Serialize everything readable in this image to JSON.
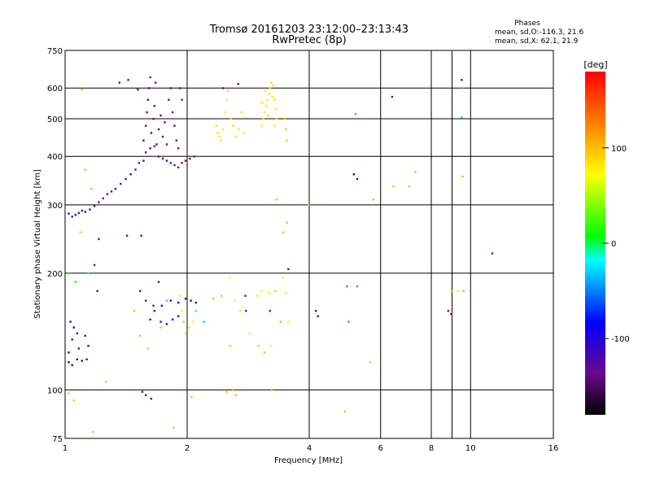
{
  "chart_data": {
    "type": "scatter",
    "title": "Tromsø 20161203 23:12:00–23:13:43",
    "subtitle": "RwPretec (8p)",
    "xlabel": "Frequency [MHz]",
    "ylabel": "Stationary phase Virtual Height [km]",
    "x_scale": "log",
    "y_scale": "log",
    "xlim": [
      1,
      16
    ],
    "ylim": [
      75,
      750
    ],
    "x_ticks": [
      1,
      2,
      4,
      6,
      8,
      10,
      16
    ],
    "y_ticks": [
      75,
      100,
      200,
      300,
      400,
      500,
      600,
      750
    ],
    "x_gridlines": [
      1,
      2,
      4,
      6,
      8,
      9,
      10,
      16
    ],
    "y_gridlines": [
      100,
      200,
      300,
      400,
      500,
      600
    ],
    "phases": {
      "title": "Phases",
      "o_line": "mean, sd,O:-116.3, 21.6",
      "x_line": "mean, sd,X:  62.1, 21.9"
    },
    "colorbar": {
      "label": "[deg]",
      "range": [
        -180,
        180
      ],
      "ticks": [
        -100,
        0,
        100
      ]
    },
    "series": [
      {
        "values": [
          [
            1.02,
            285,
            -115
          ],
          [
            1.04,
            280,
            -112
          ],
          [
            1.06,
            283,
            -110
          ],
          [
            1.08,
            286,
            -114
          ],
          [
            1.1,
            290,
            -108
          ],
          [
            1.12,
            288,
            -113
          ],
          [
            1.15,
            292,
            -118
          ],
          [
            1.18,
            298,
            -116
          ],
          [
            1.21,
            305,
            -120
          ],
          [
            1.24,
            312,
            -118
          ],
          [
            1.27,
            320,
            -122
          ],
          [
            1.3,
            325,
            -120
          ],
          [
            1.03,
            150,
            -105
          ],
          [
            1.05,
            145,
            -110
          ],
          [
            1.07,
            140,
            -108
          ],
          [
            1.04,
            135,
            -102
          ],
          [
            1.08,
            128,
            -112
          ],
          [
            1.02,
            125,
            -106
          ],
          [
            1.12,
            138,
            -110
          ],
          [
            1.14,
            130,
            -104
          ],
          [
            1.02,
            118,
            -100
          ],
          [
            1.04,
            116,
            -104
          ],
          [
            1.07,
            120,
            -98
          ],
          [
            1.1,
            119,
            -102
          ],
          [
            1.13,
            120,
            -100
          ],
          [
            1.73,
            165,
            -110
          ],
          [
            1.82,
            170,
            -112
          ],
          [
            1.9,
            168,
            -108
          ],
          [
            1.98,
            172,
            -106
          ],
          [
            2.04,
            170,
            -104
          ],
          [
            2.1,
            168,
            -110
          ],
          [
            1.72,
            150,
            -112
          ],
          [
            1.78,
            148,
            -108
          ],
          [
            1.84,
            152,
            -106
          ],
          [
            1.9,
            155,
            -110
          ],
          [
            1.96,
            150,
            -104
          ],
          [
            1.62,
            152,
            -108
          ],
          [
            1.66,
            160,
            -110
          ],
          [
            4.15,
            160,
            -112
          ],
          [
            4.2,
            155,
            -108
          ],
          [
            5.15,
            360,
            -106
          ],
          [
            5.25,
            350,
            -110
          ],
          [
            9.5,
            630,
            -104
          ]
        ]
      },
      {
        "values": [
          [
            1.33,
            330,
            -132
          ],
          [
            1.37,
            340,
            -135
          ],
          [
            1.41,
            350,
            -138
          ],
          [
            1.45,
            360,
            -140
          ],
          [
            1.49,
            370,
            -136
          ],
          [
            1.52,
            385,
            -134
          ],
          [
            1.56,
            390,
            -138
          ],
          [
            1.58,
            410,
            -140
          ],
          [
            1.62,
            420,
            -136
          ],
          [
            1.66,
            425,
            -134
          ],
          [
            1.7,
            400,
            -138
          ],
          [
            1.74,
            395,
            -136
          ],
          [
            1.78,
            390,
            -140
          ],
          [
            1.82,
            385,
            -134
          ],
          [
            1.86,
            380,
            -132
          ],
          [
            1.9,
            375,
            -136
          ],
          [
            1.94,
            385,
            -138
          ],
          [
            1.98,
            390,
            -134
          ],
          [
            2.03,
            395,
            -136
          ],
          [
            2.08,
            400,
            -132
          ],
          [
            1.56,
            440,
            -140
          ],
          [
            1.58,
            480,
            -136
          ],
          [
            1.59,
            520,
            -138
          ],
          [
            1.6,
            560,
            -142
          ],
          [
            1.61,
            600,
            -140
          ],
          [
            1.62,
            640,
            -136
          ],
          [
            1.63,
            460,
            -138
          ],
          [
            1.65,
            500,
            -134
          ],
          [
            1.66,
            540,
            -136
          ],
          [
            1.67,
            620,
            -140
          ],
          [
            1.68,
            430,
            -138
          ],
          [
            1.7,
            470,
            -134
          ],
          [
            1.72,
            510,
            -136
          ],
          [
            1.74,
            450,
            -138
          ],
          [
            1.76,
            490,
            -140
          ],
          [
            1.78,
            430,
            -136
          ],
          [
            1.8,
            560,
            -138
          ],
          [
            1.82,
            600,
            -134
          ],
          [
            1.84,
            520,
            -136
          ],
          [
            1.86,
            480,
            -140
          ],
          [
            1.88,
            440,
            -138
          ],
          [
            1.9,
            420,
            -134
          ],
          [
            1.92,
            600,
            -136
          ],
          [
            1.94,
            560,
            -138
          ],
          [
            1.43,
            630,
            -134
          ],
          [
            1.36,
            620,
            -136
          ],
          [
            1.51,
            595,
            -138
          ],
          [
            1.54,
            250,
            -132
          ],
          [
            1.42,
            250,
            -134
          ],
          [
            1.21,
            245,
            -130
          ],
          [
            1.18,
            210,
            -132
          ],
          [
            1.2,
            180,
            -136
          ],
          [
            1.53,
            180,
            -134
          ],
          [
            1.58,
            170,
            -132
          ],
          [
            1.65,
            165,
            -134
          ],
          [
            1.7,
            190,
            -136
          ],
          [
            1.58,
            97,
            -134
          ],
          [
            1.63,
            95,
            -132
          ],
          [
            1.55,
            99,
            -130
          ],
          [
            2.78,
            175,
            -136
          ],
          [
            2.79,
            160,
            -134
          ],
          [
            3.2,
            160,
            -132
          ],
          [
            3.55,
            205,
            -134
          ],
          [
            6.4,
            570,
            -132
          ],
          [
            8.8,
            160,
            -134
          ],
          [
            8.95,
            157,
            -136
          ],
          [
            11.3,
            225,
            -132
          ],
          [
            2.45,
            600,
            -130
          ],
          [
            2.67,
            615,
            -132
          ]
        ]
      },
      {
        "values": [
          [
            2.36,
            480,
            85
          ],
          [
            2.38,
            460,
            88
          ],
          [
            2.4,
            450,
            82
          ],
          [
            2.42,
            440,
            86
          ],
          [
            2.45,
            470,
            84
          ],
          [
            2.48,
            520,
            80
          ],
          [
            2.5,
            560,
            82
          ],
          [
            2.52,
            590,
            86
          ],
          [
            2.56,
            500,
            84
          ],
          [
            2.6,
            480,
            88
          ],
          [
            2.64,
            450,
            82
          ],
          [
            2.68,
            470,
            84
          ],
          [
            2.72,
            520,
            86
          ],
          [
            2.76,
            460,
            80
          ],
          [
            3.05,
            480,
            86
          ],
          [
            3.08,
            500,
            84
          ],
          [
            3.1,
            520,
            88
          ],
          [
            3.13,
            540,
            82
          ],
          [
            3.15,
            560,
            86
          ],
          [
            3.18,
            580,
            84
          ],
          [
            3.2,
            600,
            80
          ],
          [
            3.22,
            620,
            86
          ],
          [
            3.25,
            610,
            84
          ],
          [
            3.28,
            560,
            88
          ],
          [
            3.3,
            530,
            82
          ],
          [
            3.32,
            500,
            86
          ],
          [
            3.06,
            550,
            84
          ],
          [
            3.12,
            590,
            86
          ],
          [
            3.24,
            570,
            82
          ],
          [
            3.17,
            510,
            88
          ],
          [
            3.28,
            480,
            84
          ],
          [
            1.92,
            175,
            60
          ],
          [
            1.94,
            160,
            62
          ],
          [
            1.96,
            150,
            58
          ],
          [
            1.98,
            140,
            64
          ],
          [
            2.02,
            145,
            60
          ],
          [
            2.07,
            150,
            62
          ],
          [
            2.55,
            195,
            64
          ],
          [
            2.62,
            170,
            60
          ],
          [
            2.7,
            160,
            62
          ],
          [
            2.85,
            140,
            58
          ],
          [
            2.98,
            175,
            62
          ],
          [
            3.05,
            180,
            64
          ],
          [
            3.18,
            178,
            60
          ],
          [
            3.22,
            130,
            62
          ],
          [
            3.45,
            195,
            58
          ],
          [
            3.5,
            178,
            64
          ],
          [
            3.55,
            150,
            60
          ],
          [
            8.95,
            180,
            62
          ],
          [
            9.3,
            180,
            58
          ]
        ]
      },
      {
        "values": [
          [
            3.48,
            500,
            100
          ],
          [
            3.5,
            470,
            104
          ],
          [
            3.52,
            440,
            98
          ],
          [
            1.1,
            595,
            102
          ],
          [
            1.12,
            370,
            100
          ],
          [
            1.09,
            255,
            96
          ],
          [
            1.16,
            330,
            104
          ],
          [
            1.26,
            105,
            98
          ],
          [
            1.48,
            160,
            100
          ],
          [
            1.53,
            138,
            102
          ],
          [
            1.6,
            128,
            98
          ],
          [
            1.72,
            145,
            104
          ],
          [
            2.32,
            172,
            102
          ],
          [
            2.43,
            175,
            100
          ],
          [
            2.55,
            130,
            98
          ],
          [
            2.59,
            100,
            104
          ],
          [
            2.63,
            97,
            102
          ],
          [
            3.0,
            130,
            96
          ],
          [
            3.1,
            125,
            100
          ],
          [
            3.23,
            100,
            104
          ],
          [
            3.3,
            180,
            98
          ],
          [
            3.4,
            150,
            102
          ],
          [
            3.45,
            255,
            100
          ],
          [
            3.52,
            270,
            104
          ],
          [
            3.98,
            300,
            98
          ],
          [
            4.9,
            88,
            102
          ],
          [
            5.65,
            118,
            96
          ],
          [
            5.75,
            310,
            100
          ],
          [
            6.45,
            335,
            102
          ],
          [
            7.05,
            335,
            98
          ],
          [
            7.3,
            365,
            104
          ],
          [
            9.55,
            355,
            100
          ],
          [
            9.6,
            180,
            102
          ],
          [
            1.02,
            98,
            98
          ],
          [
            1.05,
            94,
            100
          ],
          [
            1.17,
            78,
            102
          ],
          [
            1.85,
            80,
            98
          ],
          [
            2.05,
            96,
            100
          ],
          [
            2.5,
            99,
            102
          ],
          [
            3.32,
            310,
            98
          ]
        ]
      },
      {
        "values": [
          [
            1.02,
            200,
            10
          ],
          [
            1.06,
            190,
            12
          ],
          [
            1.14,
            200,
            -8
          ],
          [
            2.1,
            160,
            -20
          ],
          [
            2.2,
            150,
            -30
          ],
          [
            4.95,
            185,
            -40
          ],
          [
            5.0,
            150,
            -35
          ],
          [
            5.25,
            185,
            -38
          ],
          [
            9.55,
            600,
            -30
          ],
          [
            9.5,
            505,
            -25
          ],
          [
            1.78,
            170,
            -28
          ],
          [
            5.2,
            515,
            -32
          ]
        ]
      }
    ]
  }
}
